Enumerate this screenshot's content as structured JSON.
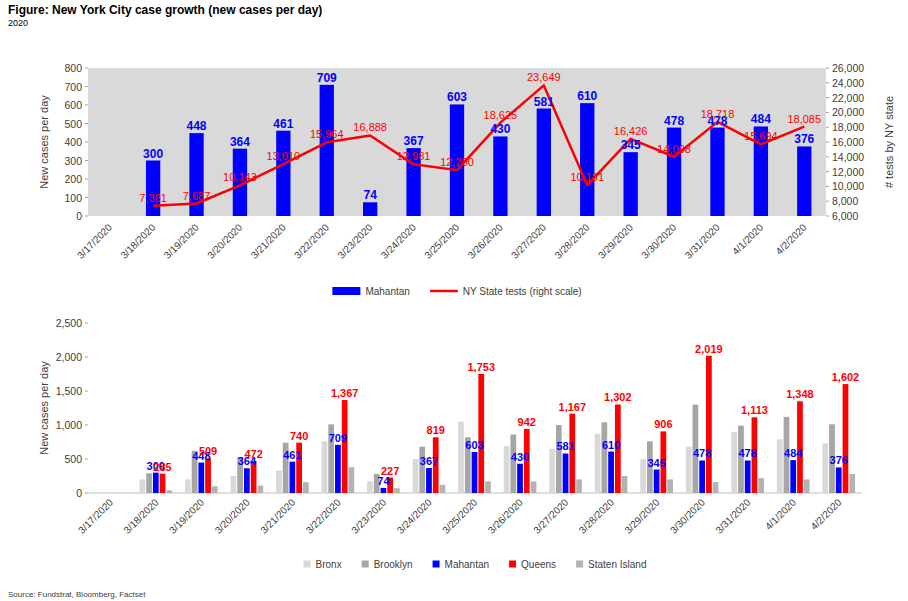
{
  "title": "Figure: New York City case growth (new cases per day)",
  "subtitle": "2020",
  "source": "Source: Fundstrat, Bloomberg, Factset",
  "chart_data": [
    {
      "type": "bar",
      "categories": [
        "3/17/2020",
        "3/18/2020",
        "3/19/2020",
        "3/20/2020",
        "3/21/2020",
        "3/22/2020",
        "3/23/2020",
        "3/24/2020",
        "3/25/2020",
        "3/26/2020",
        "3/27/2020",
        "3/28/2020",
        "3/29/2020",
        "3/30/2020",
        "3/31/2020",
        "4/1/2020",
        "4/2/2020"
      ],
      "series": [
        {
          "name": "Mahantan",
          "type": "bar",
          "color": "#0000ff",
          "data_labels": true,
          "values": [
            null,
            300,
            448,
            364,
            461,
            709,
            74,
            367,
            603,
            430,
            581,
            610,
            345,
            478,
            478,
            484,
            376
          ]
        },
        {
          "name": "NY State tests (right scale)",
          "type": "line",
          "color": "#ff0000",
          "axis": "y2",
          "data_labels": true,
          "values": [
            null,
            7381,
            7687,
            10143,
            13010,
            15964,
            16888,
            12981,
            12200,
            18625,
            23649,
            10181,
            16426,
            14008,
            18718,
            15694,
            18085
          ],
          "value_labels": [
            null,
            "7,381",
            "7,687",
            "10,143",
            "13,010",
            "15,964",
            "16,888",
            "12,981",
            "12,200",
            "18,625",
            "23,649",
            "10,181",
            "16,426",
            "14,008",
            "18,718",
            "15,694",
            "18,085"
          ]
        }
      ],
      "y_label": "New cases per day",
      "y2_label": "# tests by NY state",
      "ylim": [
        0,
        800
      ],
      "yticks": [
        0,
        100,
        200,
        300,
        400,
        500,
        600,
        700,
        800
      ],
      "y2lim": [
        6000,
        26000
      ],
      "y2ticks": [
        {
          "value": 6000,
          "label": "6,000"
        },
        {
          "value": 8000,
          "label": "8,000"
        },
        {
          "value": 10000,
          "label": "10,000"
        },
        {
          "value": 12000,
          "label": "12,000"
        },
        {
          "value": 14000,
          "label": "14,000"
        },
        {
          "value": 16000,
          "label": "16,000"
        },
        {
          "value": 18000,
          "label": "18,000"
        },
        {
          "value": 20000,
          "label": "20,000"
        },
        {
          "value": 22000,
          "label": "22,000"
        },
        {
          "value": 24000,
          "label": "24,000"
        },
        {
          "value": 26000,
          "label": "26,000"
        }
      ],
      "grid": false,
      "legend": "bottom"
    },
    {
      "type": "bar",
      "categories": [
        "3/17/2020",
        "3/18/2020",
        "3/19/2020",
        "3/20/2020",
        "3/21/2020",
        "3/22/2020",
        "3/23/2020",
        "3/24/2020",
        "3/25/2020",
        "3/26/2020",
        "3/27/2020",
        "3/28/2020",
        "3/29/2020",
        "3/30/2020",
        "3/31/2020",
        "4/1/2020",
        "4/2/2020"
      ],
      "series": [
        {
          "name": "Bronx",
          "color": "#d9d9d9",
          "data_labels": false,
          "values": [
            null,
            200,
            200,
            250,
            330,
            760,
            170,
            500,
            1050,
            690,
            650,
            870,
            500,
            680,
            900,
            790,
            730
          ]
        },
        {
          "name": "Brooklyn",
          "color": "#a6a6a6",
          "data_labels": false,
          "values": [
            null,
            290,
            620,
            530,
            740,
            1010,
            280,
            680,
            820,
            860,
            1000,
            1040,
            760,
            1300,
            990,
            1120,
            1010
          ]
        },
        {
          "name": "Mahantan",
          "color": "#0000ff",
          "data_labels": true,
          "values": [
            null,
            300,
            448,
            364,
            461,
            709,
            74,
            367,
            603,
            430,
            581,
            610,
            345,
            478,
            478,
            484,
            376
          ]
        },
        {
          "name": "Queens",
          "color": "#ff0000",
          "data_labels": true,
          "values": [
            null,
            285,
            509,
            472,
            740,
            1367,
            227,
            819,
            1753,
            942,
            1167,
            1302,
            906,
            2019,
            1113,
            1348,
            1602
          ],
          "value_labels": [
            null,
            "285",
            "509",
            "472",
            "740",
            "1,367",
            "227",
            "819",
            "1,753",
            "942",
            "1,167",
            "1,302",
            "906",
            "2,019",
            "1,113",
            "1,348",
            "1,602"
          ]
        },
        {
          "name": "Staten Island",
          "color": "#b3b3b3",
          "data_labels": false,
          "values": [
            null,
            40,
            100,
            110,
            160,
            380,
            70,
            120,
            170,
            170,
            200,
            250,
            200,
            160,
            220,
            200,
            280
          ]
        }
      ],
      "y_label": "New cases per day",
      "ylim": [
        0,
        2500
      ],
      "yticks": [
        0,
        500,
        {
          "value": 1000,
          "label": "1,000"
        },
        {
          "value": 1500,
          "label": "1,500"
        },
        {
          "value": 2000,
          "label": "2,000"
        },
        {
          "value": 2500,
          "label": "2,500"
        }
      ],
      "grid": false,
      "legend": "bottom"
    }
  ]
}
